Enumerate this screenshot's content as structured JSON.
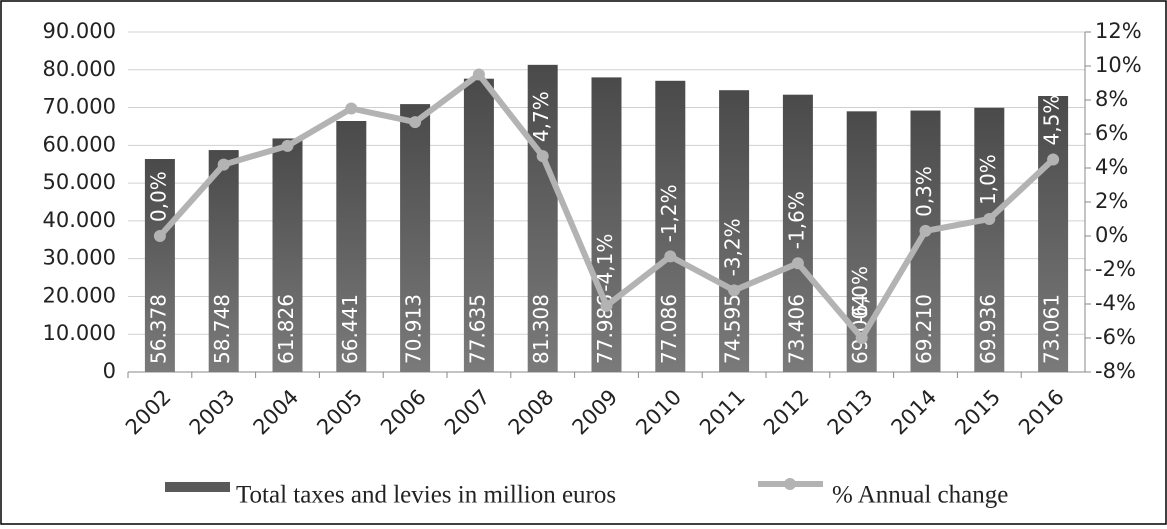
{
  "chart_data": {
    "type": "bar",
    "categories": [
      "2002",
      "2003",
      "2004",
      "2005",
      "2006",
      "2007",
      "2008",
      "2009",
      "2010",
      "2011",
      "2012",
      "2013",
      "2014",
      "2015",
      "2016"
    ],
    "series": [
      {
        "name": "Total taxes and levies in million euros",
        "color": "#5a5a5a",
        "values": [
          56378,
          58748,
          61826,
          66441,
          70913,
          77635,
          81308,
          77986,
          77086,
          74595,
          73406,
          69004,
          69210,
          69936,
          73061
        ],
        "value_labels": [
          "56.378",
          "58.748",
          "61.826",
          "66.441",
          "70.913",
          "77.635",
          "81.308",
          "77.986",
          "77.086",
          "74.595",
          "73.406",
          "69.004",
          "69.210",
          "69.936",
          "73.061"
        ]
      },
      {
        "name": "% Annual change",
        "type": "line",
        "axis": "y2",
        "color": "#b3b3b3",
        "values": [
          0.0,
          4.2,
          5.3,
          7.5,
          6.7,
          9.5,
          4.7,
          -4.1,
          -1.2,
          -3.2,
          -1.6,
          -6.0,
          0.3,
          1.0,
          4.5
        ],
        "value_labels": [
          "0,0%",
          null,
          null,
          null,
          null,
          null,
          "4,7%",
          "-4,1%",
          "-1,2%",
          "-3,2%",
          "-1,6%",
          "-6,0%",
          "0,3%",
          "1,0%",
          "4,5%"
        ]
      }
    ],
    "ylim": [
      0,
      90000
    ],
    "yticks": [
      0,
      {
        "value": 10000,
        "label": "10.000"
      },
      {
        "value": 20000,
        "label": "20.000"
      },
      {
        "value": 30000,
        "label": "30.000"
      },
      {
        "value": 40000,
        "label": "40.000"
      },
      {
        "value": 50000,
        "label": "50.000"
      },
      {
        "value": 60000,
        "label": "60.000"
      },
      {
        "value": 70000,
        "label": "70.000"
      },
      {
        "value": 80000,
        "label": "80.000"
      },
      {
        "value": 90000,
        "label": "90.000"
      }
    ],
    "y2lim": [
      -8,
      12
    ],
    "y2ticks": [
      {
        "value": -8,
        "label": "-8%"
      },
      {
        "value": -6,
        "label": "-6%"
      },
      {
        "value": -4,
        "label": "-4%"
      },
      {
        "value": -2,
        "label": "-2%"
      },
      {
        "value": 0,
        "label": "0%"
      },
      {
        "value": 2,
        "label": "2%"
      },
      {
        "value": 4,
        "label": "4%"
      },
      {
        "value": 6,
        "label": "6%"
      },
      {
        "value": 8,
        "label": "8%"
      },
      {
        "value": 10,
        "label": "10%"
      },
      {
        "value": 12,
        "label": "12%"
      }
    ],
    "grid": true
  }
}
